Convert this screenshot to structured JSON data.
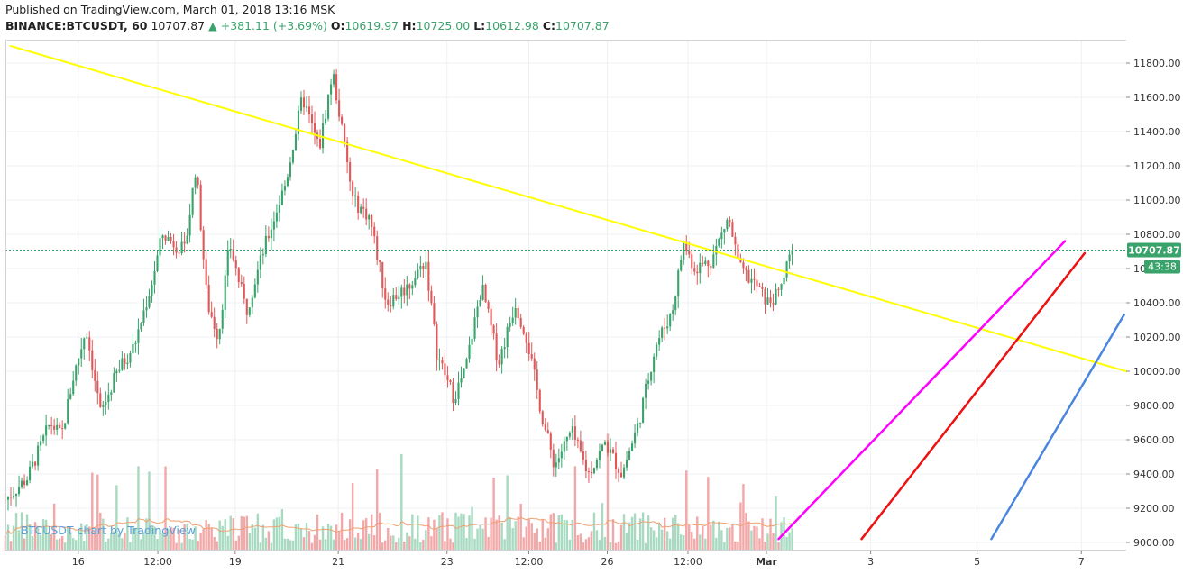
{
  "header": {
    "published": "Published on TradingView.com, March 01, 2018 13:16 MSK",
    "symbol": "BINANCE:BTCUSDT, 60",
    "last": "10707.87",
    "change_arrow": "▲",
    "change": "+381.11 (+3.69%)",
    "o_label": "O:",
    "o_value": "10619.97",
    "h_label": "H:",
    "h_value": "10725.00",
    "l_label": "L:",
    "l_value": "10612.98",
    "c_label": "C:",
    "c_value": "10707.87"
  },
  "watermark": "BTCUSDT chart by TradingView",
  "colors": {
    "up": "#3aa36b",
    "down": "#e15858",
    "vol_up": "#a7dac0",
    "vol_down": "#f2a8a8",
    "ma": "#f0a070",
    "yellow": "#ffff00",
    "magenta": "#ff00ff",
    "red": "#ee1111",
    "blue": "#4a86e0",
    "price_line": "#3aa36b"
  },
  "chart_data": {
    "type": "candlestick",
    "symbol": "BTCUSDT",
    "timeframe": "60",
    "ylim": [
      8950,
      11950
    ],
    "y_ticks": [
      "9000.00",
      "9200.00",
      "9400.00",
      "9600.00",
      "9800.00",
      "10000.00",
      "10200.00",
      "10400.00",
      "10600.00",
      "10800.00",
      "11000.00",
      "11200.00",
      "11400.00",
      "11600.00",
      "11800.00"
    ],
    "x_ticks": [
      {
        "label": "16",
        "t": 0.065
      },
      {
        "label": "12:00",
        "t": 0.136
      },
      {
        "label": "19",
        "t": 0.205
      },
      {
        "label": "21",
        "t": 0.297
      },
      {
        "label": "23",
        "t": 0.394
      },
      {
        "label": "12:00",
        "t": 0.467
      },
      {
        "label": "26",
        "t": 0.537
      },
      {
        "label": "12:00",
        "t": 0.609
      },
      {
        "label": "Mar",
        "t": 0.679
      },
      {
        "label": "3",
        "t": 0.772
      },
      {
        "label": "5",
        "t": 0.867
      },
      {
        "label": "7",
        "t": 0.96
      }
    ],
    "last_price": "10707.87",
    "countdown": "43:38",
    "series_anchors": [
      [
        0,
        9250
      ],
      [
        0.02,
        9380
      ],
      [
        0.04,
        9700
      ],
      [
        0.05,
        9620
      ],
      [
        0.06,
        9950
      ],
      [
        0.072,
        10250
      ],
      [
        0.085,
        9750
      ],
      [
        0.1,
        10000
      ],
      [
        0.115,
        10150
      ],
      [
        0.13,
        10500
      ],
      [
        0.14,
        10800
      ],
      [
        0.16,
        10700
      ],
      [
        0.17,
        11200
      ],
      [
        0.18,
        10400
      ],
      [
        0.19,
        10200
      ],
      [
        0.2,
        10750
      ],
      [
        0.215,
        10350
      ],
      [
        0.23,
        10700
      ],
      [
        0.25,
        11100
      ],
      [
        0.265,
        11600
      ],
      [
        0.28,
        11300
      ],
      [
        0.292,
        11750
      ],
      [
        0.31,
        11000
      ],
      [
        0.325,
        10900
      ],
      [
        0.34,
        10400
      ],
      [
        0.36,
        10500
      ],
      [
        0.375,
        10650
      ],
      [
        0.385,
        10100
      ],
      [
        0.4,
        9850
      ],
      [
        0.41,
        10000
      ],
      [
        0.425,
        10500
      ],
      [
        0.44,
        10050
      ],
      [
        0.455,
        10400
      ],
      [
        0.465,
        10200
      ],
      [
        0.48,
        9700
      ],
      [
        0.49,
        9450
      ],
      [
        0.505,
        9650
      ],
      [
        0.52,
        9400
      ],
      [
        0.535,
        9580
      ],
      [
        0.55,
        9400
      ],
      [
        0.565,
        9700
      ],
      [
        0.58,
        10150
      ],
      [
        0.595,
        10350
      ],
      [
        0.605,
        10750
      ],
      [
        0.615,
        10600
      ],
      [
        0.63,
        10650
      ],
      [
        0.645,
        10900
      ],
      [
        0.655,
        10600
      ],
      [
        0.67,
        10500
      ],
      [
        0.68,
        10400
      ],
      [
        0.69,
        10450
      ],
      [
        0.702,
        10708
      ]
    ],
    "trendlines": [
      {
        "name": "yellow",
        "points": [
          [
            10,
            11900
          ],
          [
            2160,
            10000
          ]
        ]
      },
      {
        "name": "magenta",
        "points": [
          [
            1490,
            9020
          ],
          [
            2042,
            10760
          ]
        ]
      },
      {
        "name": "red",
        "points": [
          [
            1650,
            9020
          ],
          [
            2080,
            10690
          ]
        ]
      },
      {
        "name": "blue",
        "points": [
          [
            1900,
            9020
          ],
          [
            2156,
            10330
          ]
        ]
      }
    ]
  }
}
